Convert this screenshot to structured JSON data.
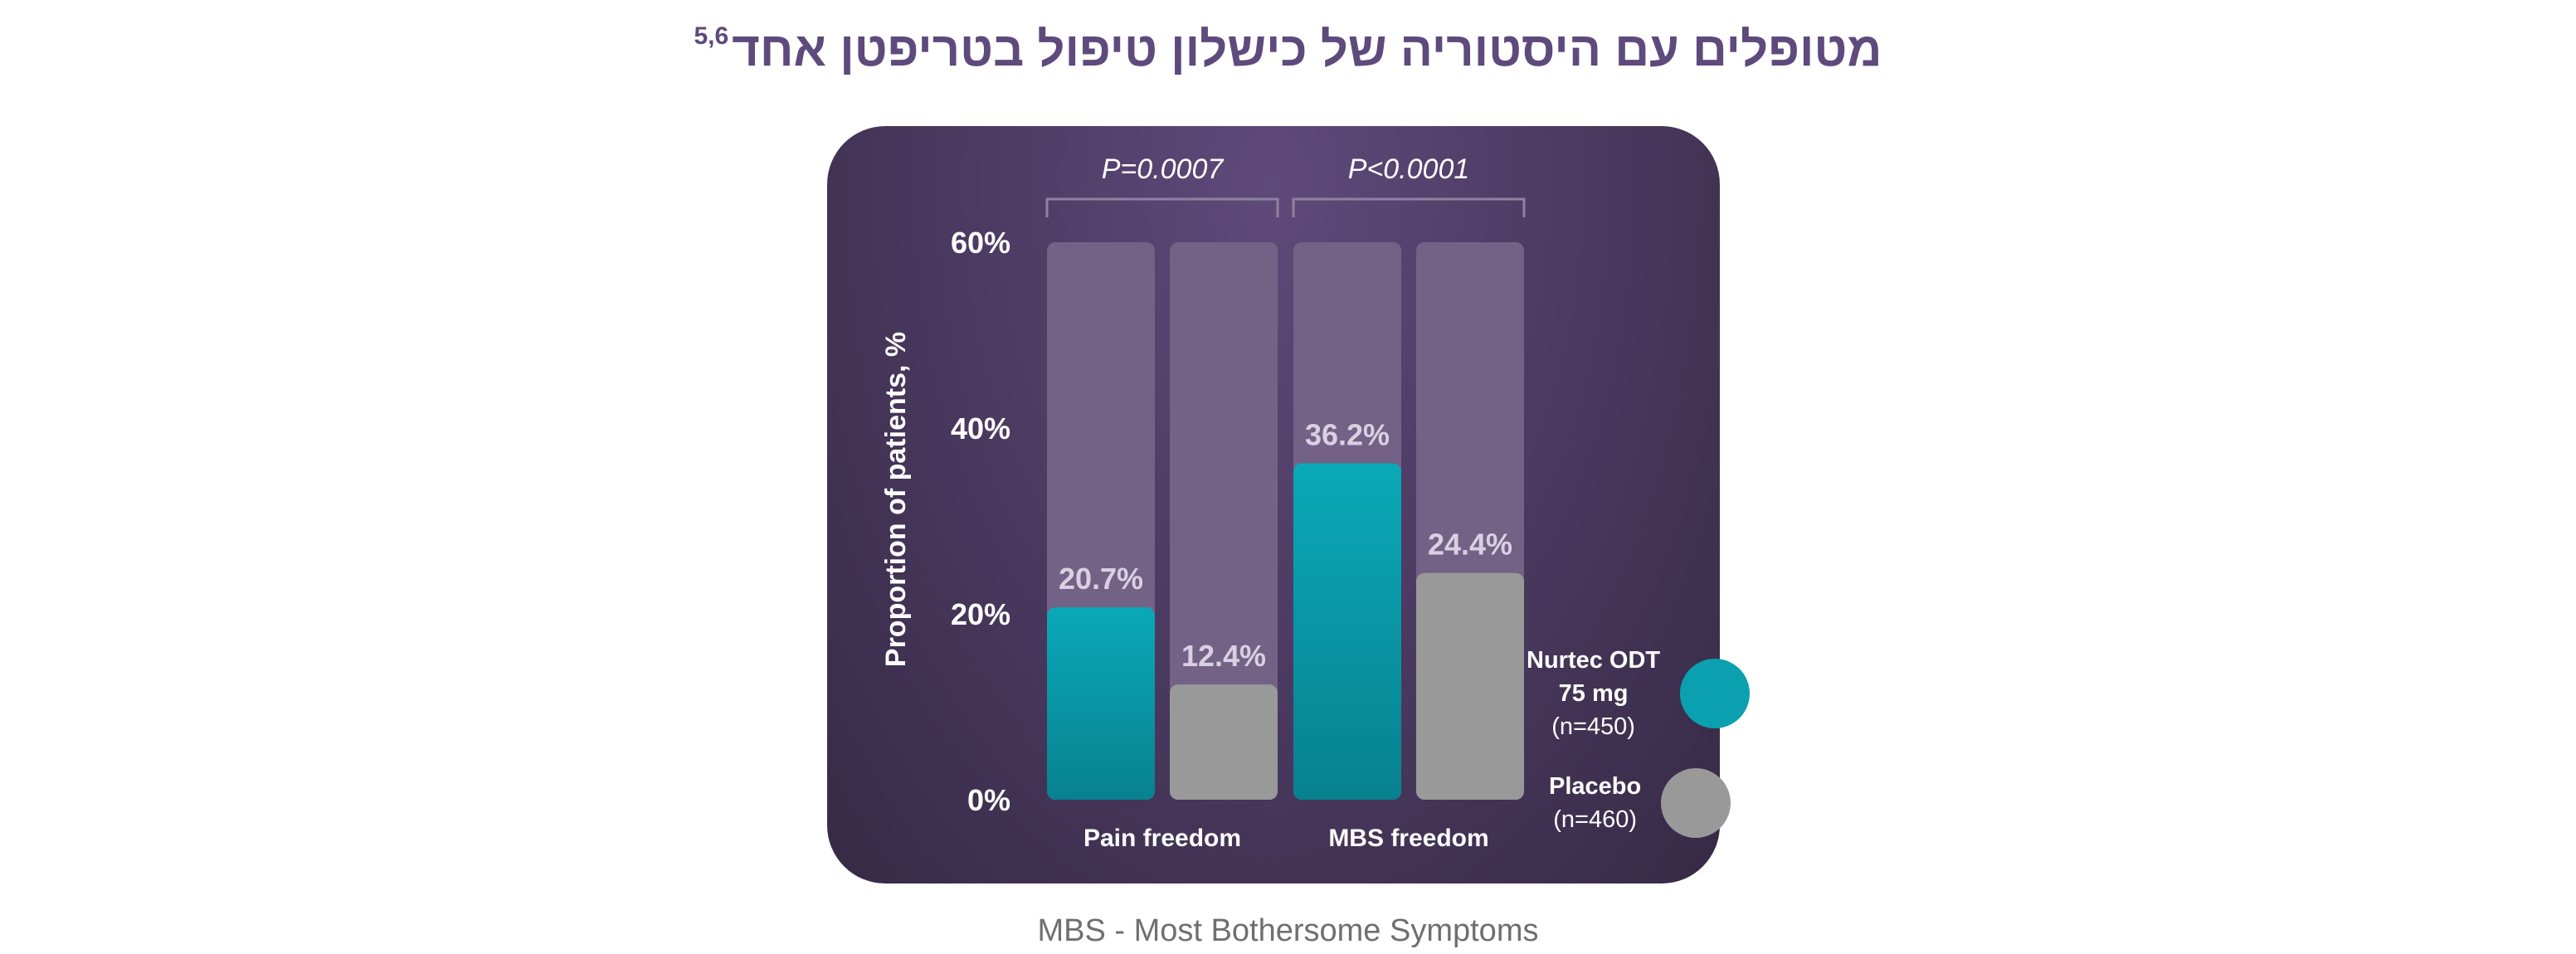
{
  "title": {
    "text": "מטופלים עם היסטוריה של כישלון טיפול בטריפטן אחד",
    "superscript": "5,6"
  },
  "colors": {
    "title": "#5e4a7c",
    "panel": "#4d3b63",
    "track": "#736285",
    "nurtec": "#0aa0b0",
    "placebo": "#999999",
    "bracket": "#8f819f",
    "value_label": "#d9d0e4"
  },
  "chart_data": {
    "type": "bar",
    "categories": [
      "Pain freedom",
      "MBS freedom"
    ],
    "series": [
      {
        "name": "Nurtec ODT 75 mg (n=450)",
        "values": [
          20.7,
          36.2
        ],
        "labels": [
          "20.7%",
          "36.2%"
        ]
      },
      {
        "name": "Placebo (n=460)",
        "values": [
          12.4,
          24.4
        ],
        "labels": [
          "12.4%",
          "24.4%"
        ]
      }
    ],
    "ylabel": "Proportion of patients, %",
    "ylim": [
      0,
      60
    ],
    "yticks": [
      0,
      20,
      40,
      60
    ],
    "ytick_labels": [
      "0%",
      "20%",
      "40%",
      "60%"
    ],
    "annotations": [
      "P=0.0007",
      "P<0.0001"
    ],
    "grid": false,
    "legend_position": "bottom-right"
  },
  "legend": [
    {
      "name": "Nurtec ODT",
      "dose": "75 mg",
      "n": "(n=450)",
      "icon": "teal-dot-icon",
      "color": "#0aa0b0"
    },
    {
      "name": "Placebo",
      "n": "(n=460)",
      "icon": "gray-dot-icon",
      "color": "#999999"
    }
  ],
  "footnote": "MBS - Most Bothersome Symptoms"
}
